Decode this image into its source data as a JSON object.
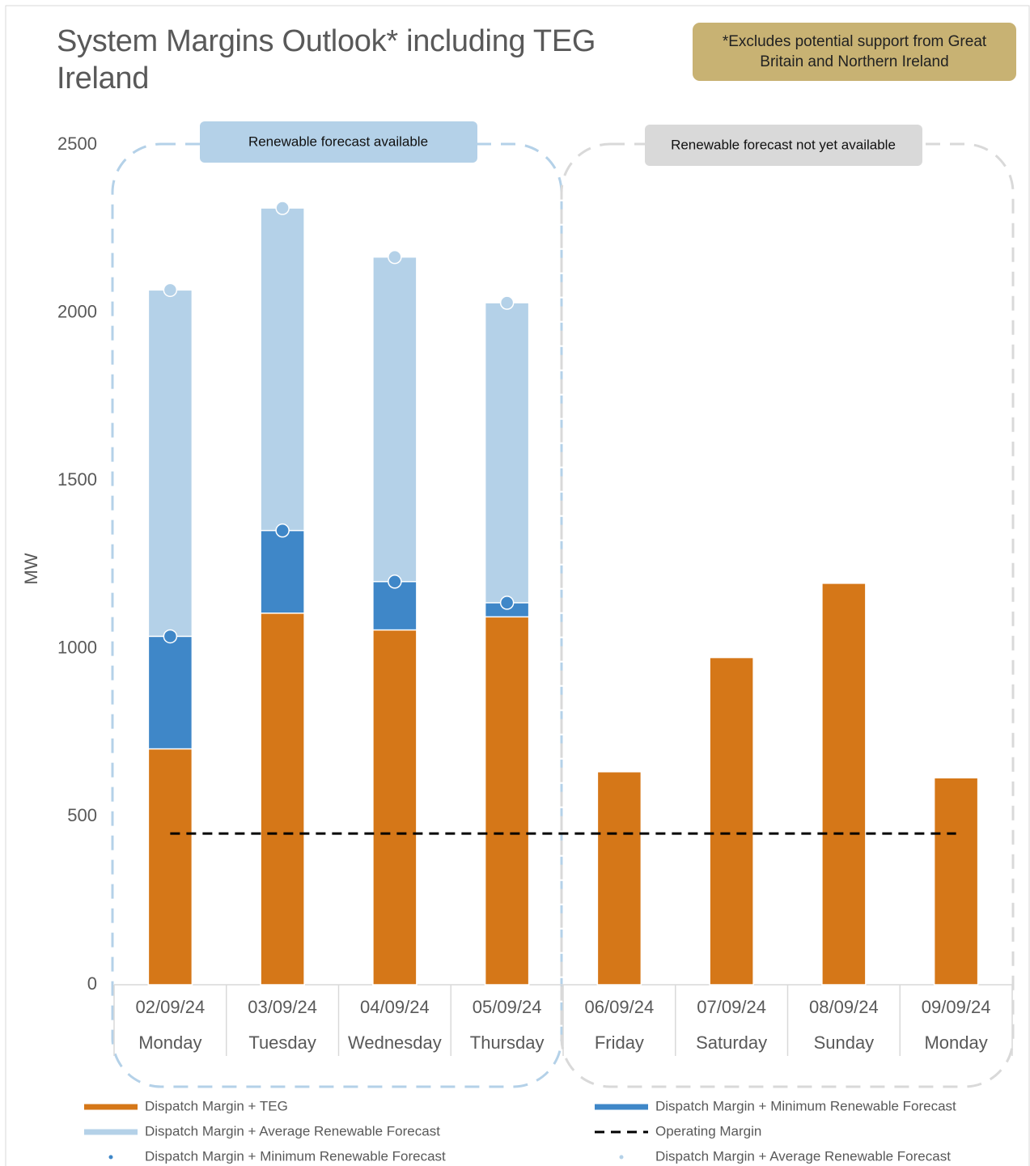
{
  "chart_data": {
    "type": "bar",
    "title": "System Margins Outlook* including TEG Ireland",
    "note": "*Excludes potential support from Great Britain and Northern Ireland",
    "annotations": [
      "Renewable forecast available",
      "Renewable forecast not yet available"
    ],
    "y_label": "MW",
    "categories": [
      "02/09/24",
      "03/09/24",
      "04/09/24",
      "05/09/24",
      "06/09/24",
      "07/09/24",
      "08/09/24",
      "09/09/24"
    ],
    "weekdays": [
      "Monday",
      "Tuesday",
      "Wednesday",
      "Thursday",
      "Friday",
      "Saturday",
      "Sunday",
      "Monday"
    ],
    "series": [
      {
        "name": "Dispatch Margin + TEG",
        "type": "bar",
        "color": "#d57718",
        "values": [
          702,
          1106,
          1056,
          1095,
          634,
          974,
          1195,
          616
        ]
      },
      {
        "name": "Dispatch Margin + Minimum Renewable Forecast",
        "type": "bar",
        "color": "#3f87c8",
        "values": [
          1037,
          1352,
          1200,
          1137,
          null,
          null,
          null,
          null
        ]
      },
      {
        "name": "Dispatch Margin + Average Renewable Forecast",
        "type": "bar",
        "color": "#b4d1e8",
        "values": [
          2068,
          2312,
          2166,
          2030,
          null,
          null,
          null,
          null
        ]
      },
      {
        "name": "Operating Margin",
        "type": "line",
        "color": "#000000",
        "values": [
          450,
          450,
          450,
          450,
          450,
          450,
          450,
          450
        ]
      },
      {
        "name": "Dispatch Margin + Minimum Renewable Forecast",
        "type": "scatter",
        "color": "#3f87c8",
        "values": [
          1037,
          1352,
          1200,
          1137,
          null,
          null,
          null,
          null
        ]
      },
      {
        "name": "Dispatch Margin + Average Renewable Forecast",
        "type": "scatter",
        "color": "#b4d1e8",
        "values": [
          2068,
          2312,
          2166,
          2030,
          null,
          null,
          null,
          null
        ]
      }
    ],
    "ylim": [
      0,
      2500
    ],
    "yticks": [
      0,
      500,
      1000,
      1500,
      2000,
      2500
    ],
    "grid": false
  }
}
